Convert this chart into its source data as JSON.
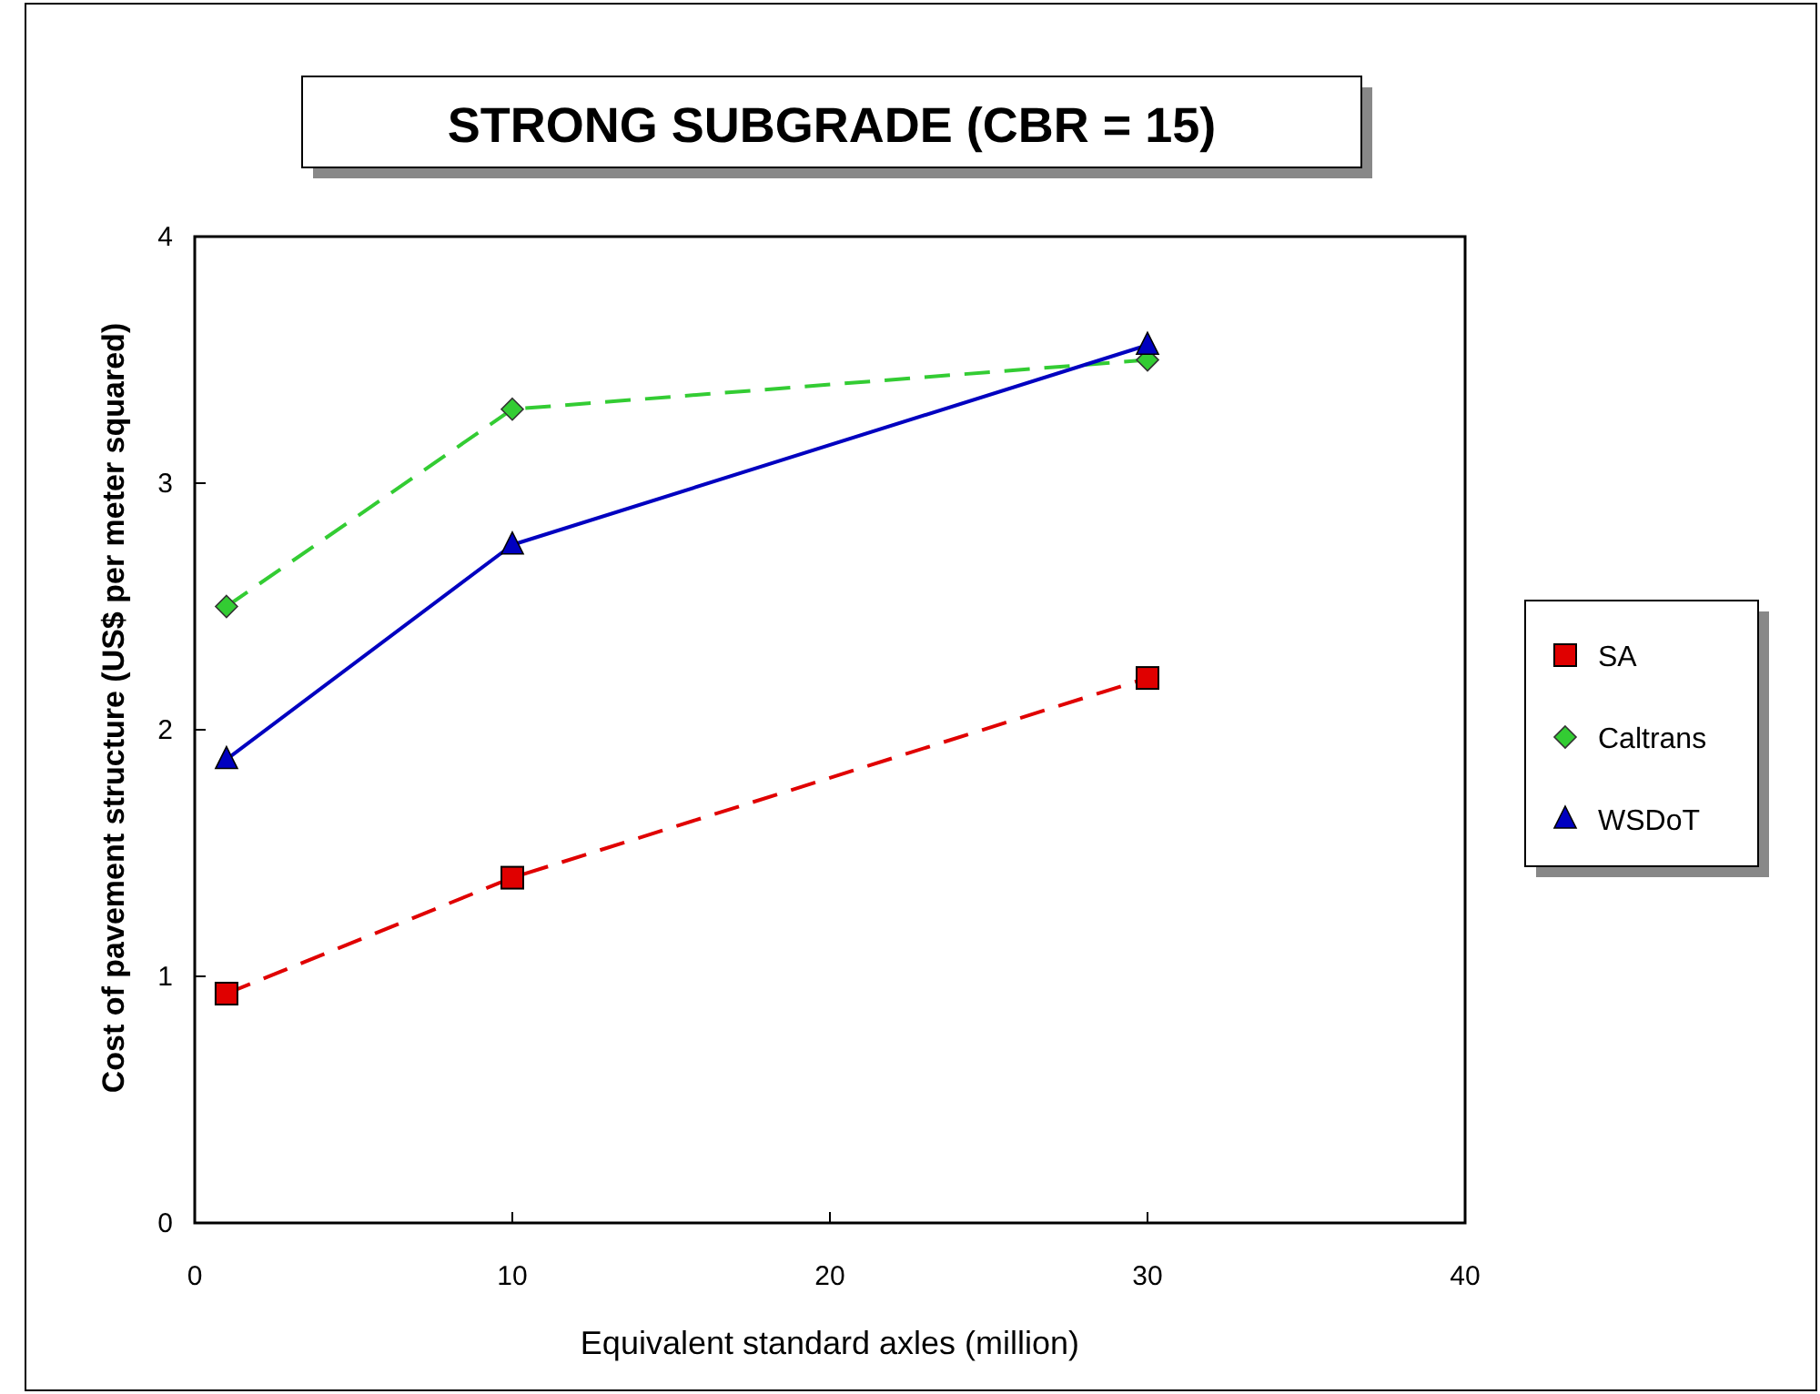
{
  "chart_data": {
    "type": "line",
    "title": "STRONG SUBGRADE (CBR = 15)",
    "xlabel": "Equivalent standard axles (million)",
    "ylabel": "Cost of pavement structure (US$ per meter squared)",
    "x": [
      1,
      10,
      30
    ],
    "series": [
      {
        "name": "SA",
        "color": "#e00000",
        "values": [
          0.93,
          1.4,
          2.21
        ],
        "marker": "square",
        "line_style": "dashed"
      },
      {
        "name": "Caltrans",
        "color": "#33cc33",
        "values": [
          2.5,
          3.3,
          3.5
        ],
        "marker": "diamond",
        "line_style": "dashed"
      },
      {
        "name": "WSDoT",
        "color": "#0000c0",
        "values": [
          1.88,
          2.75,
          3.56
        ],
        "marker": "triangle",
        "line_style": "solid"
      }
    ],
    "xlim": [
      0,
      40
    ],
    "xticks": [
      0,
      10,
      20,
      30,
      40
    ],
    "ylim": [
      0,
      4
    ],
    "yticks": [
      0,
      1,
      2,
      3,
      4
    ],
    "grid": false,
    "legend": "right"
  }
}
